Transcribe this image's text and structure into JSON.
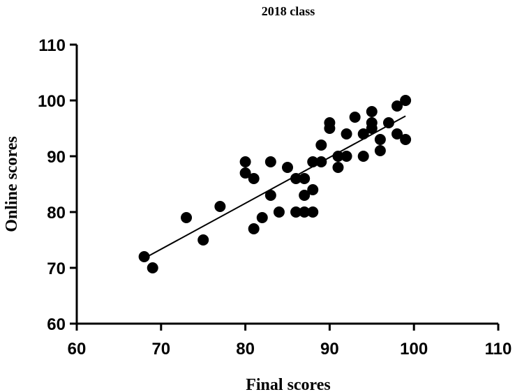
{
  "chart_data": {
    "type": "scatter",
    "title": "2018 class",
    "xlabel": "Final scores",
    "ylabel": "Online scores",
    "xlim": [
      60,
      110
    ],
    "ylim": [
      60,
      110
    ],
    "xticks": [
      60,
      70,
      80,
      90,
      100,
      110
    ],
    "yticks": [
      60,
      70,
      80,
      90,
      100,
      110
    ],
    "grid": false,
    "marker_color": "#000000",
    "points": [
      {
        "x": 68,
        "y": 72
      },
      {
        "x": 69,
        "y": 70
      },
      {
        "x": 73,
        "y": 79
      },
      {
        "x": 75,
        "y": 75
      },
      {
        "x": 77,
        "y": 81
      },
      {
        "x": 80,
        "y": 89
      },
      {
        "x": 80,
        "y": 87
      },
      {
        "x": 81,
        "y": 86
      },
      {
        "x": 81,
        "y": 77
      },
      {
        "x": 82,
        "y": 79
      },
      {
        "x": 83,
        "y": 89
      },
      {
        "x": 83,
        "y": 83
      },
      {
        "x": 84,
        "y": 80
      },
      {
        "x": 85,
        "y": 88
      },
      {
        "x": 86,
        "y": 86
      },
      {
        "x": 86,
        "y": 80
      },
      {
        "x": 87,
        "y": 86
      },
      {
        "x": 87,
        "y": 83
      },
      {
        "x": 87,
        "y": 80
      },
      {
        "x": 88,
        "y": 89
      },
      {
        "x": 88,
        "y": 84
      },
      {
        "x": 88,
        "y": 80
      },
      {
        "x": 89,
        "y": 92
      },
      {
        "x": 89,
        "y": 89
      },
      {
        "x": 90,
        "y": 96
      },
      {
        "x": 90,
        "y": 95
      },
      {
        "x": 91,
        "y": 90
      },
      {
        "x": 91,
        "y": 88
      },
      {
        "x": 92,
        "y": 94
      },
      {
        "x": 92,
        "y": 90
      },
      {
        "x": 93,
        "y": 97
      },
      {
        "x": 94,
        "y": 94
      },
      {
        "x": 94,
        "y": 90
      },
      {
        "x": 95,
        "y": 98
      },
      {
        "x": 95,
        "y": 96
      },
      {
        "x": 95,
        "y": 95
      },
      {
        "x": 96,
        "y": 93
      },
      {
        "x": 96,
        "y": 91
      },
      {
        "x": 97,
        "y": 96
      },
      {
        "x": 98,
        "y": 99
      },
      {
        "x": 98,
        "y": 94
      },
      {
        "x": 99,
        "y": 100
      },
      {
        "x": 99,
        "y": 93
      }
    ],
    "fit_line": {
      "x": [
        68,
        99
      ],
      "y": [
        71.7,
        97.2
      ]
    }
  }
}
